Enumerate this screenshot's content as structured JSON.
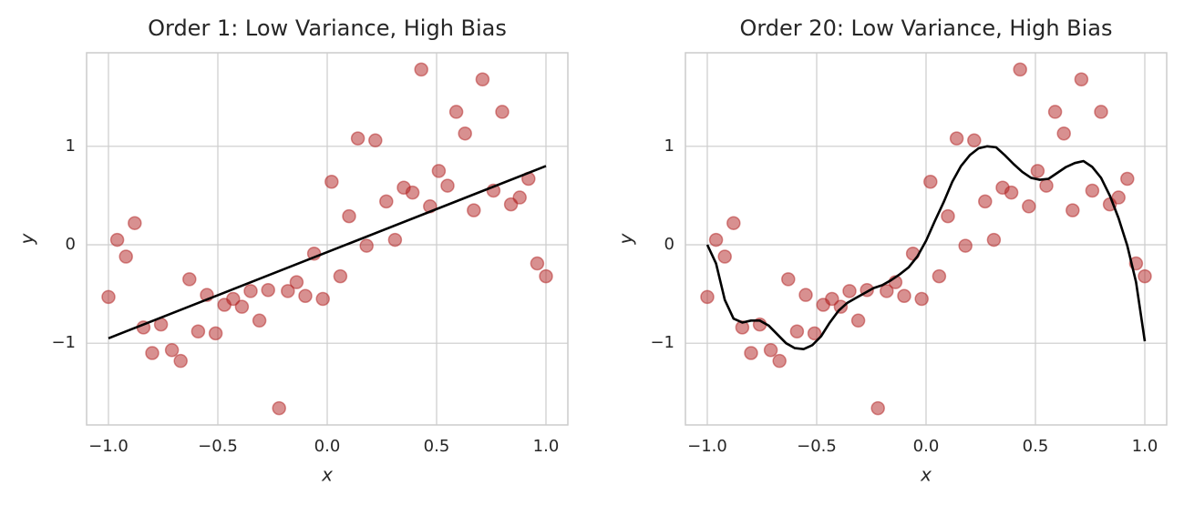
{
  "chart_data": [
    {
      "type": "scatter",
      "title": "Order 1: Low Variance, High Bias",
      "xlabel": "x",
      "ylabel": "y",
      "xlim": [
        -1.1,
        1.1
      ],
      "ylim": [
        -1.83,
        1.95
      ],
      "grid": true,
      "xticks": [
        {
          "value": -1,
          "label": "−1.0"
        },
        {
          "value": -0.5,
          "label": "−0.5"
        },
        {
          "value": 0,
          "label": "0.0"
        },
        {
          "value": 0.5,
          "label": "0.5"
        },
        {
          "value": 1,
          "label": "1.0"
        }
      ],
      "yticks": [
        {
          "value": -1,
          "label": "−1"
        },
        0,
        1
      ],
      "series": [
        {
          "type": "scatter",
          "color": "#b22222",
          "alpha": 0.5,
          "x": [
            -1,
            -0.96,
            -0.92,
            -0.88,
            -0.84,
            -0.8,
            -0.76,
            -0.71,
            -0.67,
            -0.63,
            -0.59,
            -0.55,
            -0.51,
            -0.47,
            -0.43,
            -0.39,
            -0.35,
            -0.31,
            -0.27,
            -0.22,
            -0.18,
            -0.14,
            -0.1,
            -0.06,
            -0.02,
            0.02,
            0.06,
            0.1,
            0.14,
            0.18,
            0.22,
            0.27,
            0.31,
            0.35,
            0.39,
            0.43,
            0.47,
            0.51,
            0.55,
            0.59,
            0.63,
            0.67,
            0.71,
            0.76,
            0.8,
            0.84,
            0.88,
            0.92,
            0.96,
            1
          ],
          "values": [
            -0.53,
            0.05,
            -0.12,
            0.22,
            -0.84,
            -1.1,
            -0.81,
            -1.07,
            -1.18,
            -0.35,
            -0.88,
            -0.51,
            -0.9,
            -0.61,
            -0.55,
            -0.63,
            -0.47,
            -0.77,
            -0.46,
            -1.66,
            -0.47,
            -0.38,
            -0.52,
            -0.09,
            -0.55,
            0.64,
            -0.32,
            0.29,
            1.08,
            -0.01,
            1.06,
            0.44,
            0.05,
            0.58,
            0.53,
            1.78,
            0.39,
            0.75,
            0.6,
            1.35,
            1.13,
            0.35,
            1.68,
            0.55,
            1.35,
            0.41,
            0.48,
            0.67,
            -0.19,
            -0.32
          ]
        },
        {
          "type": "line",
          "color": "#000000",
          "x": [
            -1,
            1
          ],
          "values": [
            -0.95,
            0.8
          ]
        }
      ]
    },
    {
      "type": "scatter",
      "title": "Order 20: Low Variance, High Bias",
      "xlabel": "x",
      "ylabel": "y",
      "xlim": [
        -1.1,
        1.1
      ],
      "ylim": [
        -1.83,
        1.95
      ],
      "grid": true,
      "xticks": [
        {
          "value": -1,
          "label": "−1.0"
        },
        {
          "value": -0.5,
          "label": "−0.5"
        },
        {
          "value": 0,
          "label": "0.0"
        },
        {
          "value": 0.5,
          "label": "0.5"
        },
        {
          "value": 1,
          "label": "1.0"
        }
      ],
      "yticks": [
        {
          "value": -1,
          "label": "−1"
        },
        0,
        1
      ],
      "series": [
        {
          "type": "scatter",
          "color": "#b22222",
          "alpha": 0.5,
          "x": [
            -1,
            -0.96,
            -0.92,
            -0.88,
            -0.84,
            -0.8,
            -0.76,
            -0.71,
            -0.67,
            -0.63,
            -0.59,
            -0.55,
            -0.51,
            -0.47,
            -0.43,
            -0.39,
            -0.35,
            -0.31,
            -0.27,
            -0.22,
            -0.18,
            -0.14,
            -0.1,
            -0.06,
            -0.02,
            0.02,
            0.06,
            0.1,
            0.14,
            0.18,
            0.22,
            0.27,
            0.31,
            0.35,
            0.39,
            0.43,
            0.47,
            0.51,
            0.55,
            0.59,
            0.63,
            0.67,
            0.71,
            0.76,
            0.8,
            0.84,
            0.88,
            0.92,
            0.96,
            1
          ],
          "values": [
            -0.53,
            0.05,
            -0.12,
            0.22,
            -0.84,
            -1.1,
            -0.81,
            -1.07,
            -1.18,
            -0.35,
            -0.88,
            -0.51,
            -0.9,
            -0.61,
            -0.55,
            -0.63,
            -0.47,
            -0.77,
            -0.46,
            -1.66,
            -0.47,
            -0.38,
            -0.52,
            -0.09,
            -0.55,
            0.64,
            -0.32,
            0.29,
            1.08,
            -0.01,
            1.06,
            0.44,
            0.05,
            0.58,
            0.53,
            1.78,
            0.39,
            0.75,
            0.6,
            1.35,
            1.13,
            0.35,
            1.68,
            0.55,
            1.35,
            0.41,
            0.48,
            0.67,
            -0.19,
            -0.32
          ]
        },
        {
          "type": "line",
          "color": "#000000",
          "x": [
            -1,
            -0.96,
            -0.92,
            -0.88,
            -0.84,
            -0.8,
            -0.76,
            -0.72,
            -0.68,
            -0.64,
            -0.6,
            -0.56,
            -0.52,
            -0.48,
            -0.44,
            -0.4,
            -0.36,
            -0.32,
            -0.28,
            -0.24,
            -0.2,
            -0.16,
            -0.12,
            -0.08,
            -0.04,
            0,
            0.04,
            0.08,
            0.12,
            0.16,
            0.2,
            0.24,
            0.28,
            0.32,
            0.36,
            0.4,
            0.44,
            0.48,
            0.52,
            0.56,
            0.6,
            0.64,
            0.68,
            0.72,
            0.76,
            0.8,
            0.84,
            0.88,
            0.92,
            0.96,
            1
          ],
          "values": [
            0,
            -0.19,
            -0.56,
            -0.75,
            -0.79,
            -0.77,
            -0.77,
            -0.82,
            -0.91,
            -1.0,
            -1.05,
            -1.06,
            -1.02,
            -0.93,
            -0.79,
            -0.67,
            -0.59,
            -0.54,
            -0.49,
            -0.44,
            -0.41,
            -0.36,
            -0.3,
            -0.23,
            -0.12,
            0.04,
            0.24,
            0.43,
            0.64,
            0.8,
            0.91,
            0.98,
            1.0,
            0.99,
            0.91,
            0.82,
            0.74,
            0.68,
            0.66,
            0.67,
            0.73,
            0.79,
            0.83,
            0.85,
            0.79,
            0.68,
            0.5,
            0.27,
            -0.01,
            -0.38,
            -0.98
          ]
        }
      ]
    }
  ]
}
